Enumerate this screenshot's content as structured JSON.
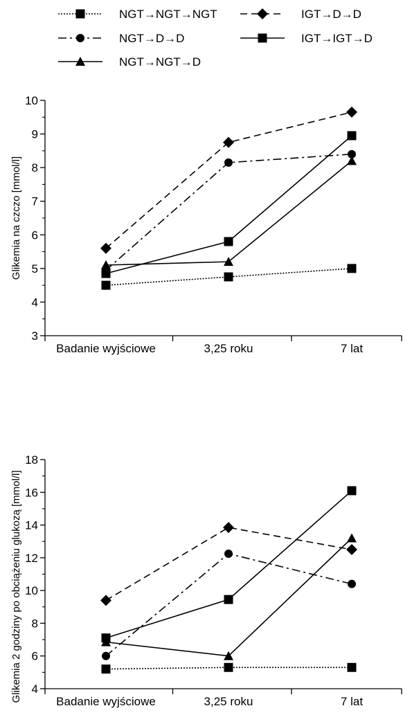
{
  "legend": [
    {
      "label": "NGT→NGT→NGT",
      "series": 0
    },
    {
      "label": "IGT→D→D",
      "series": 3
    },
    {
      "label": "NGT→D→D",
      "series": 1
    },
    {
      "label": "IGT→IGT→D",
      "series": 4
    },
    {
      "label": "NGT→NGT→D",
      "series": 2
    }
  ],
  "series_styles": [
    {
      "dash": "2,2",
      "marker": "square",
      "color": "#000000"
    },
    {
      "dash": "12,5,3,5",
      "marker": "circle",
      "color": "#000000"
    },
    {
      "dash": "",
      "marker": "triangle",
      "color": "#000000"
    },
    {
      "dash": "10,6",
      "marker": "diamond",
      "color": "#000000"
    },
    {
      "dash": "",
      "marker": "square",
      "color": "#000000"
    }
  ],
  "chart_data": [
    {
      "type": "line",
      "title": "",
      "xlabel": "",
      "ylabel": "Glikemia na czczo [mmol/l]",
      "categories": [
        "Badanie wyjściowe",
        "3,25 roku",
        "7 lat"
      ],
      "ylim": [
        3,
        10
      ],
      "yticks": [
        "3",
        "4",
        "5",
        "6",
        "7",
        "8",
        "9",
        "10"
      ],
      "grid": false,
      "series": [
        {
          "name": "NGT→NGT→NGT",
          "values": [
            4.5,
            4.75,
            5.0
          ]
        },
        {
          "name": "NGT→D→D",
          "values": [
            4.95,
            8.15,
            8.4
          ]
        },
        {
          "name": "NGT→NGT→D",
          "values": [
            5.1,
            5.2,
            8.2
          ]
        },
        {
          "name": "IGT→D→D",
          "values": [
            5.6,
            8.75,
            9.65
          ]
        },
        {
          "name": "IGT→IGT→D",
          "values": [
            4.85,
            5.8,
            8.95
          ]
        }
      ]
    },
    {
      "type": "line",
      "title": "",
      "xlabel": "",
      "ylabel": "Glikemia 2 godziny po obciążeniu glukozą [mmol/l]",
      "categories": [
        "Badanie wyjściowe",
        "3,25 roku",
        "7 lat"
      ],
      "ylim": [
        4,
        18
      ],
      "yticks": [
        "4",
        "6",
        "8",
        "10",
        "12",
        "14",
        "16",
        "18"
      ],
      "grid": false,
      "series": [
        {
          "name": "NGT→NGT→NGT",
          "values": [
            5.2,
            5.3,
            5.3
          ]
        },
        {
          "name": "NGT→D→D",
          "values": [
            6.0,
            12.25,
            10.4
          ]
        },
        {
          "name": "NGT→NGT→D",
          "values": [
            6.85,
            6.0,
            13.2
          ]
        },
        {
          "name": "IGT→D→D",
          "values": [
            9.4,
            13.85,
            12.5
          ]
        },
        {
          "name": "IGT→IGT→D",
          "values": [
            7.1,
            9.45,
            16.1
          ]
        }
      ]
    }
  ]
}
